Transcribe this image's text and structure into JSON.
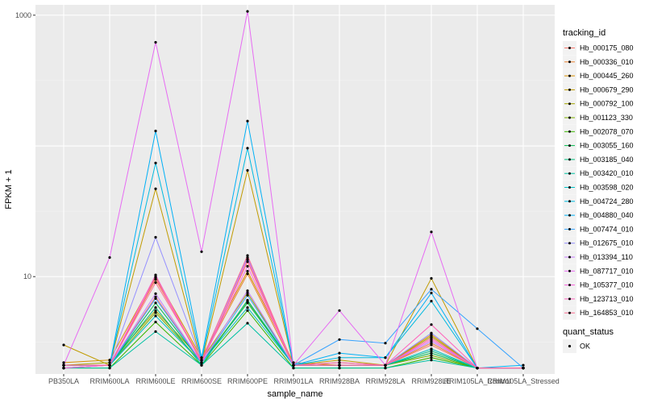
{
  "chart_data": {
    "type": "line",
    "xlabel": "sample_name",
    "ylabel": "FPKM + 1",
    "y_scale": "log10",
    "ylim": [
      1.8,
      1200
    ],
    "y_ticks": [
      {
        "value": 10,
        "label": "10"
      },
      {
        "value": 1000,
        "label": "1000"
      }
    ],
    "categories": [
      "PB350LA",
      "RRIM600LA",
      "RRIM600LE",
      "RRIM600SE",
      "RRIM600PE",
      "RRIM901LA",
      "RRIM928BA",
      "RRIM928LA",
      "RRIM928LE",
      "RRIM105LA_Control",
      "RRIM105LA_Stressed"
    ],
    "grid": true,
    "legend_position": "right",
    "legend_title": "tracking_id",
    "series": [
      {
        "name": "Hb_000175_080",
        "color": "#F8766D",
        "values": [
          2.1,
          2.1,
          7.0,
          2.2,
          13.0,
          2.1,
          2.1,
          2.1,
          3.0,
          2.0,
          2.0
        ]
      },
      {
        "name": "Hb_000336_010",
        "color": "#EA8331",
        "values": [
          2.1,
          2.1,
          9.5,
          2.3,
          10.5,
          2.1,
          2.1,
          2.1,
          3.1,
          2.0,
          2.0
        ]
      },
      {
        "name": "Hb_000445_260",
        "color": "#D89000",
        "values": [
          2.2,
          2.3,
          10.0,
          2.4,
          11.0,
          2.2,
          2.1,
          2.1,
          3.6,
          2.0,
          2.0
        ]
      },
      {
        "name": "Hb_000679_290",
        "color": "#C09B00",
        "values": [
          3.0,
          2.1,
          47.0,
          2.2,
          65.0,
          2.1,
          2.3,
          2.1,
          9.7,
          2.0,
          2.0
        ]
      },
      {
        "name": "Hb_000792_100",
        "color": "#A3A500",
        "values": [
          2.1,
          2.2,
          5.5,
          2.3,
          7.5,
          2.1,
          2.2,
          2.1,
          3.5,
          2.0,
          2.0
        ]
      },
      {
        "name": "Hb_001123_330",
        "color": "#7CAE00",
        "values": [
          2.0,
          2.1,
          5.3,
          2.2,
          6.5,
          2.1,
          2.1,
          2.1,
          2.5,
          2.0,
          2.0
        ]
      },
      {
        "name": "Hb_002078_070",
        "color": "#39B600",
        "values": [
          2.0,
          2.0,
          4.5,
          2.1,
          5.5,
          2.0,
          2.0,
          2.0,
          2.4,
          2.0,
          2.0
        ]
      },
      {
        "name": "Hb_003055_160",
        "color": "#00BB4E",
        "values": [
          2.1,
          2.1,
          6.3,
          2.2,
          6.3,
          2.1,
          2.1,
          2.1,
          2.6,
          2.0,
          2.0
        ]
      },
      {
        "name": "Hb_003185_040",
        "color": "#00BF7D",
        "values": [
          2.0,
          2.1,
          5.8,
          2.1,
          6.6,
          2.1,
          2.1,
          2.1,
          2.7,
          2.0,
          2.0
        ]
      },
      {
        "name": "Hb_003420_010",
        "color": "#00C1A3",
        "values": [
          2.0,
          2.0,
          3.8,
          2.1,
          4.4,
          2.0,
          2.0,
          2.0,
          2.3,
          2.0,
          2.0
        ]
      },
      {
        "name": "Hb_003598_020",
        "color": "#00BFC4",
        "values": [
          2.1,
          2.1,
          5.0,
          2.2,
          5.8,
          2.1,
          2.1,
          2.1,
          2.8,
          2.0,
          2.0
        ]
      },
      {
        "name": "Hb_004724_280",
        "color": "#00BAE0",
        "values": [
          2.1,
          2.1,
          74.0,
          2.3,
          96.0,
          2.1,
          2.4,
          2.4,
          6.5,
          2.0,
          2.0
        ]
      },
      {
        "name": "Hb_004880_040",
        "color": "#00B0F6",
        "values": [
          2.1,
          2.1,
          130.0,
          2.4,
          155.0,
          2.1,
          2.6,
          2.4,
          7.5,
          2.0,
          2.1
        ]
      },
      {
        "name": "Hb_007474_010",
        "color": "#35A2FF",
        "values": [
          2.1,
          2.1,
          6.8,
          2.2,
          7.2,
          2.1,
          3.3,
          3.1,
          8.0,
          4.0,
          2.0
        ]
      },
      {
        "name": "Hb_012675_010",
        "color": "#9590FF",
        "values": [
          2.1,
          2.1,
          20.0,
          2.3,
          14.0,
          2.1,
          2.1,
          2.1,
          3.7,
          2.0,
          2.0
        ]
      },
      {
        "name": "Hb_013394_110",
        "color": "#C77CFF",
        "values": [
          2.0,
          2.1,
          7.4,
          2.2,
          7.8,
          2.1,
          2.1,
          2.1,
          3.2,
          2.0,
          2.0
        ]
      },
      {
        "name": "Hb_087717_010",
        "color": "#E76BF3",
        "values": [
          2.1,
          14.0,
          620.0,
          15.5,
          1070.0,
          2.1,
          5.5,
          2.1,
          22.0,
          2.0,
          2.0
        ]
      },
      {
        "name": "Hb_105377_010",
        "color": "#FA62DB",
        "values": [
          2.0,
          2.1,
          10.3,
          2.2,
          12.0,
          2.1,
          2.1,
          2.1,
          3.3,
          2.0,
          2.0
        ]
      },
      {
        "name": "Hb_123713_010",
        "color": "#FF62BC",
        "values": [
          2.1,
          2.1,
          9.8,
          2.2,
          13.5,
          2.1,
          2.2,
          2.1,
          4.3,
          2.0,
          2.0
        ]
      },
      {
        "name": "Hb_164853_010",
        "color": "#FF6C91",
        "values": [
          2.1,
          2.1,
          9.0,
          2.3,
          14.5,
          2.1,
          2.1,
          2.1,
          3.4,
          2.0,
          2.0
        ]
      }
    ],
    "shape_legend": {
      "title": "quant_status",
      "items": [
        {
          "label": "OK"
        }
      ]
    }
  },
  "colors": {
    "panel_background": "#EBEBEB",
    "grid_major": "#FFFFFF",
    "grid_minor": "#F2F2F2",
    "point": "#000000"
  }
}
